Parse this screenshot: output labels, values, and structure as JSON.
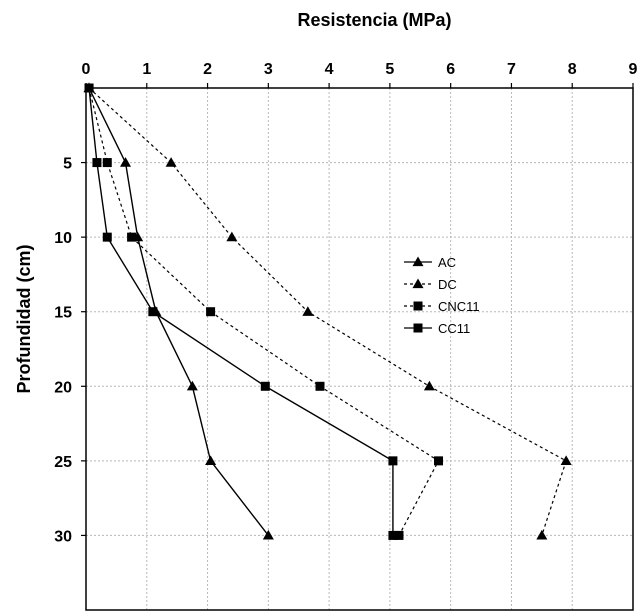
{
  "chart_data": {
    "type": "line",
    "xlabel": "Resistencia (MPa)",
    "ylabel": "Profundidad (cm)",
    "xlim": [
      0,
      9
    ],
    "ylim": [
      0,
      35
    ],
    "x_axis_position": "top",
    "y_axis_inverted": true,
    "x_ticks": [
      0,
      1,
      2,
      3,
      4,
      5,
      6,
      7,
      8,
      9
    ],
    "y_ticks": [
      5,
      10,
      15,
      20,
      25,
      30
    ],
    "grid": true,
    "legend_position": "right-middle",
    "series": [
      {
        "name": "AC",
        "line": "solid",
        "marker": "triangle",
        "points": [
          [
            0.05,
            0
          ],
          [
            0.65,
            5
          ],
          [
            0.85,
            10
          ],
          [
            1.15,
            15
          ],
          [
            1.75,
            20
          ],
          [
            2.05,
            25
          ],
          [
            3.0,
            30
          ]
        ]
      },
      {
        "name": "DC",
        "line": "dashed",
        "marker": "triangle",
        "points": [
          [
            0.05,
            0
          ],
          [
            1.4,
            5
          ],
          [
            2.4,
            10
          ],
          [
            3.65,
            15
          ],
          [
            5.65,
            20
          ],
          [
            7.9,
            25
          ],
          [
            7.5,
            30
          ]
        ]
      },
      {
        "name": "CNC11",
        "line": "dashed",
        "marker": "square",
        "points": [
          [
            0.05,
            0
          ],
          [
            0.35,
            5
          ],
          [
            0.75,
            10
          ],
          [
            2.05,
            15
          ],
          [
            3.85,
            20
          ],
          [
            5.8,
            25
          ],
          [
            5.15,
            30
          ]
        ]
      },
      {
        "name": "CC11",
        "line": "solid",
        "marker": "square",
        "points": [
          [
            0.05,
            0
          ],
          [
            0.18,
            5
          ],
          [
            0.35,
            10
          ],
          [
            1.1,
            15
          ],
          [
            2.95,
            20
          ],
          [
            5.05,
            25
          ],
          [
            5.05,
            30
          ]
        ]
      }
    ]
  }
}
